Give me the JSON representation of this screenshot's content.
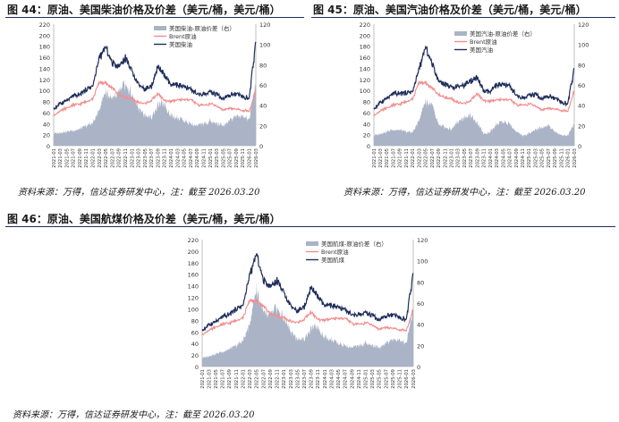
{
  "figures": [
    {
      "title": "图 44：原油、美国柴油价格及价差（美元/桶，美元/桶）",
      "source": "资料来源：万得，信达证券研发中心，注：截至 2026.03.20"
    },
    {
      "title": "图 45：原油、美国汽油价格及价差（美元/桶，美元/桶）",
      "source": "资料来源：万得，信达证券研发中心，注：截至 2026.03.20"
    },
    {
      "title": "图 46：原油、美国航煤价格及价差（美元/桶，美元/桶）",
      "source": "资料来源：万得，信达证券研发中心，注：截至 2026.03.20"
    }
  ],
  "colors": {
    "spread_fill": "#aab4c6",
    "brent_line": "#f28e8e",
    "product_line": "#1f2d5a",
    "rule": "#1f2d5a"
  },
  "x_ticks": [
    "2021-01",
    "2021-03",
    "2021-05",
    "2021-07",
    "2021-09",
    "2021-11",
    "2022-01",
    "2022-03",
    "2022-05",
    "2022-07",
    "2022-09",
    "2022-11",
    "2023-01",
    "2023-03",
    "2023-05",
    "2023-07",
    "2023-09",
    "2023-11",
    "2024-01",
    "2024-03",
    "2024-05",
    "2024-07",
    "2024-09",
    "2024-11",
    "2025-01",
    "2025-03",
    "2025-05",
    "2025-07",
    "2025-09",
    "2025-11",
    "2026-01",
    "2026-03"
  ],
  "chart_data": [
    {
      "type": "line",
      "ylim_left": [
        0,
        220
      ],
      "ylim_right": [
        0,
        120
      ],
      "yticks_left": [
        0,
        20,
        40,
        60,
        80,
        100,
        120,
        140,
        160,
        180,
        200,
        220
      ],
      "yticks_right": [
        0,
        20,
        40,
        60,
        80,
        100,
        120
      ],
      "x": [
        "2021-01",
        "2021-03",
        "2021-05",
        "2021-07",
        "2021-09",
        "2021-11",
        "2022-01",
        "2022-03",
        "2022-05",
        "2022-07",
        "2022-09",
        "2022-11",
        "2023-01",
        "2023-03",
        "2023-05",
        "2023-07",
        "2023-09",
        "2023-11",
        "2024-01",
        "2024-03",
        "2024-05",
        "2024-07",
        "2024-09",
        "2024-11",
        "2025-01",
        "2025-03",
        "2025-05",
        "2025-07",
        "2025-09",
        "2025-11",
        "2026-01",
        "2026-03"
      ],
      "series": [
        {
          "name": "美国柴油-原油价差（右）",
          "axis": "right",
          "kind": "area",
          "values": [
            12,
            13,
            14,
            15,
            16,
            20,
            22,
            35,
            55,
            45,
            52,
            60,
            50,
            38,
            30,
            28,
            40,
            42,
            30,
            28,
            25,
            22,
            20,
            22,
            24,
            22,
            20,
            25,
            30,
            28,
            26,
            62
          ]
        },
        {
          "name": "Brent原油",
          "axis": "left",
          "kind": "line",
          "values": [
            55,
            63,
            68,
            74,
            75,
            80,
            85,
            115,
            112,
            105,
            92,
            88,
            84,
            78,
            76,
            82,
            94,
            82,
            80,
            84,
            82,
            84,
            74,
            73,
            76,
            72,
            64,
            68,
            66,
            64,
            62,
            100
          ]
        },
        {
          "name": "美国柴油",
          "axis": "left",
          "kind": "line",
          "values": [
            66,
            76,
            82,
            90,
            92,
            102,
            108,
            160,
            178,
            150,
            145,
            160,
            135,
            112,
            102,
            108,
            142,
            126,
            108,
            110,
            104,
            104,
            92,
            93,
            96,
            92,
            84,
            92,
            94,
            90,
            86,
            188
          ]
        }
      ]
    },
    {
      "type": "line",
      "ylim_left": [
        0,
        220
      ],
      "ylim_right": [
        0,
        120
      ],
      "yticks_left": [
        0,
        20,
        40,
        60,
        80,
        100,
        120,
        140,
        160,
        180,
        200,
        220
      ],
      "yticks_right": [
        0,
        20,
        40,
        60,
        80,
        100,
        120
      ],
      "x": [
        "2021-01",
        "2021-03",
        "2021-05",
        "2021-07",
        "2021-09",
        "2021-11",
        "2022-01",
        "2022-03",
        "2022-05",
        "2022-07",
        "2022-09",
        "2022-11",
        "2023-01",
        "2023-03",
        "2023-05",
        "2023-07",
        "2023-09",
        "2023-11",
        "2024-01",
        "2024-03",
        "2024-05",
        "2024-07",
        "2024-09",
        "2024-11",
        "2025-01",
        "2025-03",
        "2025-05",
        "2025-07",
        "2025-09",
        "2025-11",
        "2026-01",
        "2026-03"
      ],
      "series": [
        {
          "name": "美国汽油-原油价差（右）",
          "axis": "right",
          "kind": "area",
          "values": [
            10,
            12,
            14,
            16,
            15,
            14,
            13,
            25,
            45,
            40,
            20,
            18,
            16,
            24,
            28,
            30,
            22,
            12,
            14,
            22,
            24,
            22,
            14,
            10,
            12,
            16,
            18,
            20,
            14,
            10,
            10,
            22
          ]
        },
        {
          "name": "Brent原油",
          "axis": "left",
          "kind": "line",
          "values": [
            55,
            63,
            68,
            74,
            75,
            80,
            85,
            115,
            112,
            105,
            92,
            88,
            84,
            78,
            76,
            82,
            94,
            82,
            80,
            84,
            82,
            84,
            74,
            73,
            76,
            72,
            64,
            68,
            66,
            64,
            62,
            100
          ]
        },
        {
          "name": "美国汽油",
          "axis": "left",
          "kind": "line",
          "values": [
            66,
            78,
            86,
            94,
            94,
            96,
            98,
            140,
            178,
            150,
            118,
            112,
            106,
            108,
            110,
            118,
            122,
            98,
            96,
            110,
            108,
            110,
            90,
            86,
            90,
            92,
            84,
            90,
            86,
            80,
            76,
            140
          ]
        }
      ]
    },
    {
      "type": "line",
      "ylim_left": [
        0,
        220
      ],
      "ylim_right": [
        0,
        120
      ],
      "yticks_left": [
        0,
        20,
        40,
        60,
        80,
        100,
        120,
        140,
        160,
        180,
        200,
        220
      ],
      "yticks_right": [
        0,
        20,
        40,
        60,
        80,
        100,
        120
      ],
      "x": [
        "2021-01",
        "2021-03",
        "2021-05",
        "2021-07",
        "2021-09",
        "2021-11",
        "2022-01",
        "2022-03",
        "2022-05",
        "2022-07",
        "2022-09",
        "2022-11",
        "2023-01",
        "2023-03",
        "2023-05",
        "2023-07",
        "2023-09",
        "2023-11",
        "2024-01",
        "2024-03",
        "2024-05",
        "2024-07",
        "2024-09",
        "2024-11",
        "2025-01",
        "2025-03",
        "2025-05",
        "2025-07",
        "2025-09",
        "2025-11",
        "2026-01",
        "2026-03"
      ],
      "series": [
        {
          "name": "美国航煤-原油价差（右）",
          "axis": "right",
          "kind": "area",
          "values": [
            8,
            10,
            12,
            14,
            16,
            20,
            24,
            40,
            75,
            50,
            48,
            55,
            45,
            34,
            26,
            26,
            36,
            38,
            28,
            26,
            22,
            20,
            18,
            20,
            22,
            20,
            18,
            22,
            26,
            24,
            22,
            55
          ]
        },
        {
          "name": "Brent原油",
          "axis": "left",
          "kind": "line",
          "values": [
            55,
            63,
            68,
            74,
            75,
            80,
            85,
            115,
            112,
            105,
            92,
            88,
            84,
            78,
            76,
            82,
            94,
            82,
            80,
            84,
            82,
            84,
            74,
            73,
            76,
            72,
            64,
            68,
            66,
            64,
            62,
            100
          ]
        },
        {
          "name": "美国航煤",
          "axis": "left",
          "kind": "line",
          "values": [
            62,
            72,
            78,
            86,
            90,
            100,
            106,
            160,
            195,
            150,
            140,
            150,
            128,
            106,
            96,
            104,
            136,
            120,
            104,
            106,
            100,
            100,
            88,
            90,
            92,
            88,
            80,
            88,
            90,
            86,
            82,
            162
          ]
        }
      ]
    }
  ]
}
